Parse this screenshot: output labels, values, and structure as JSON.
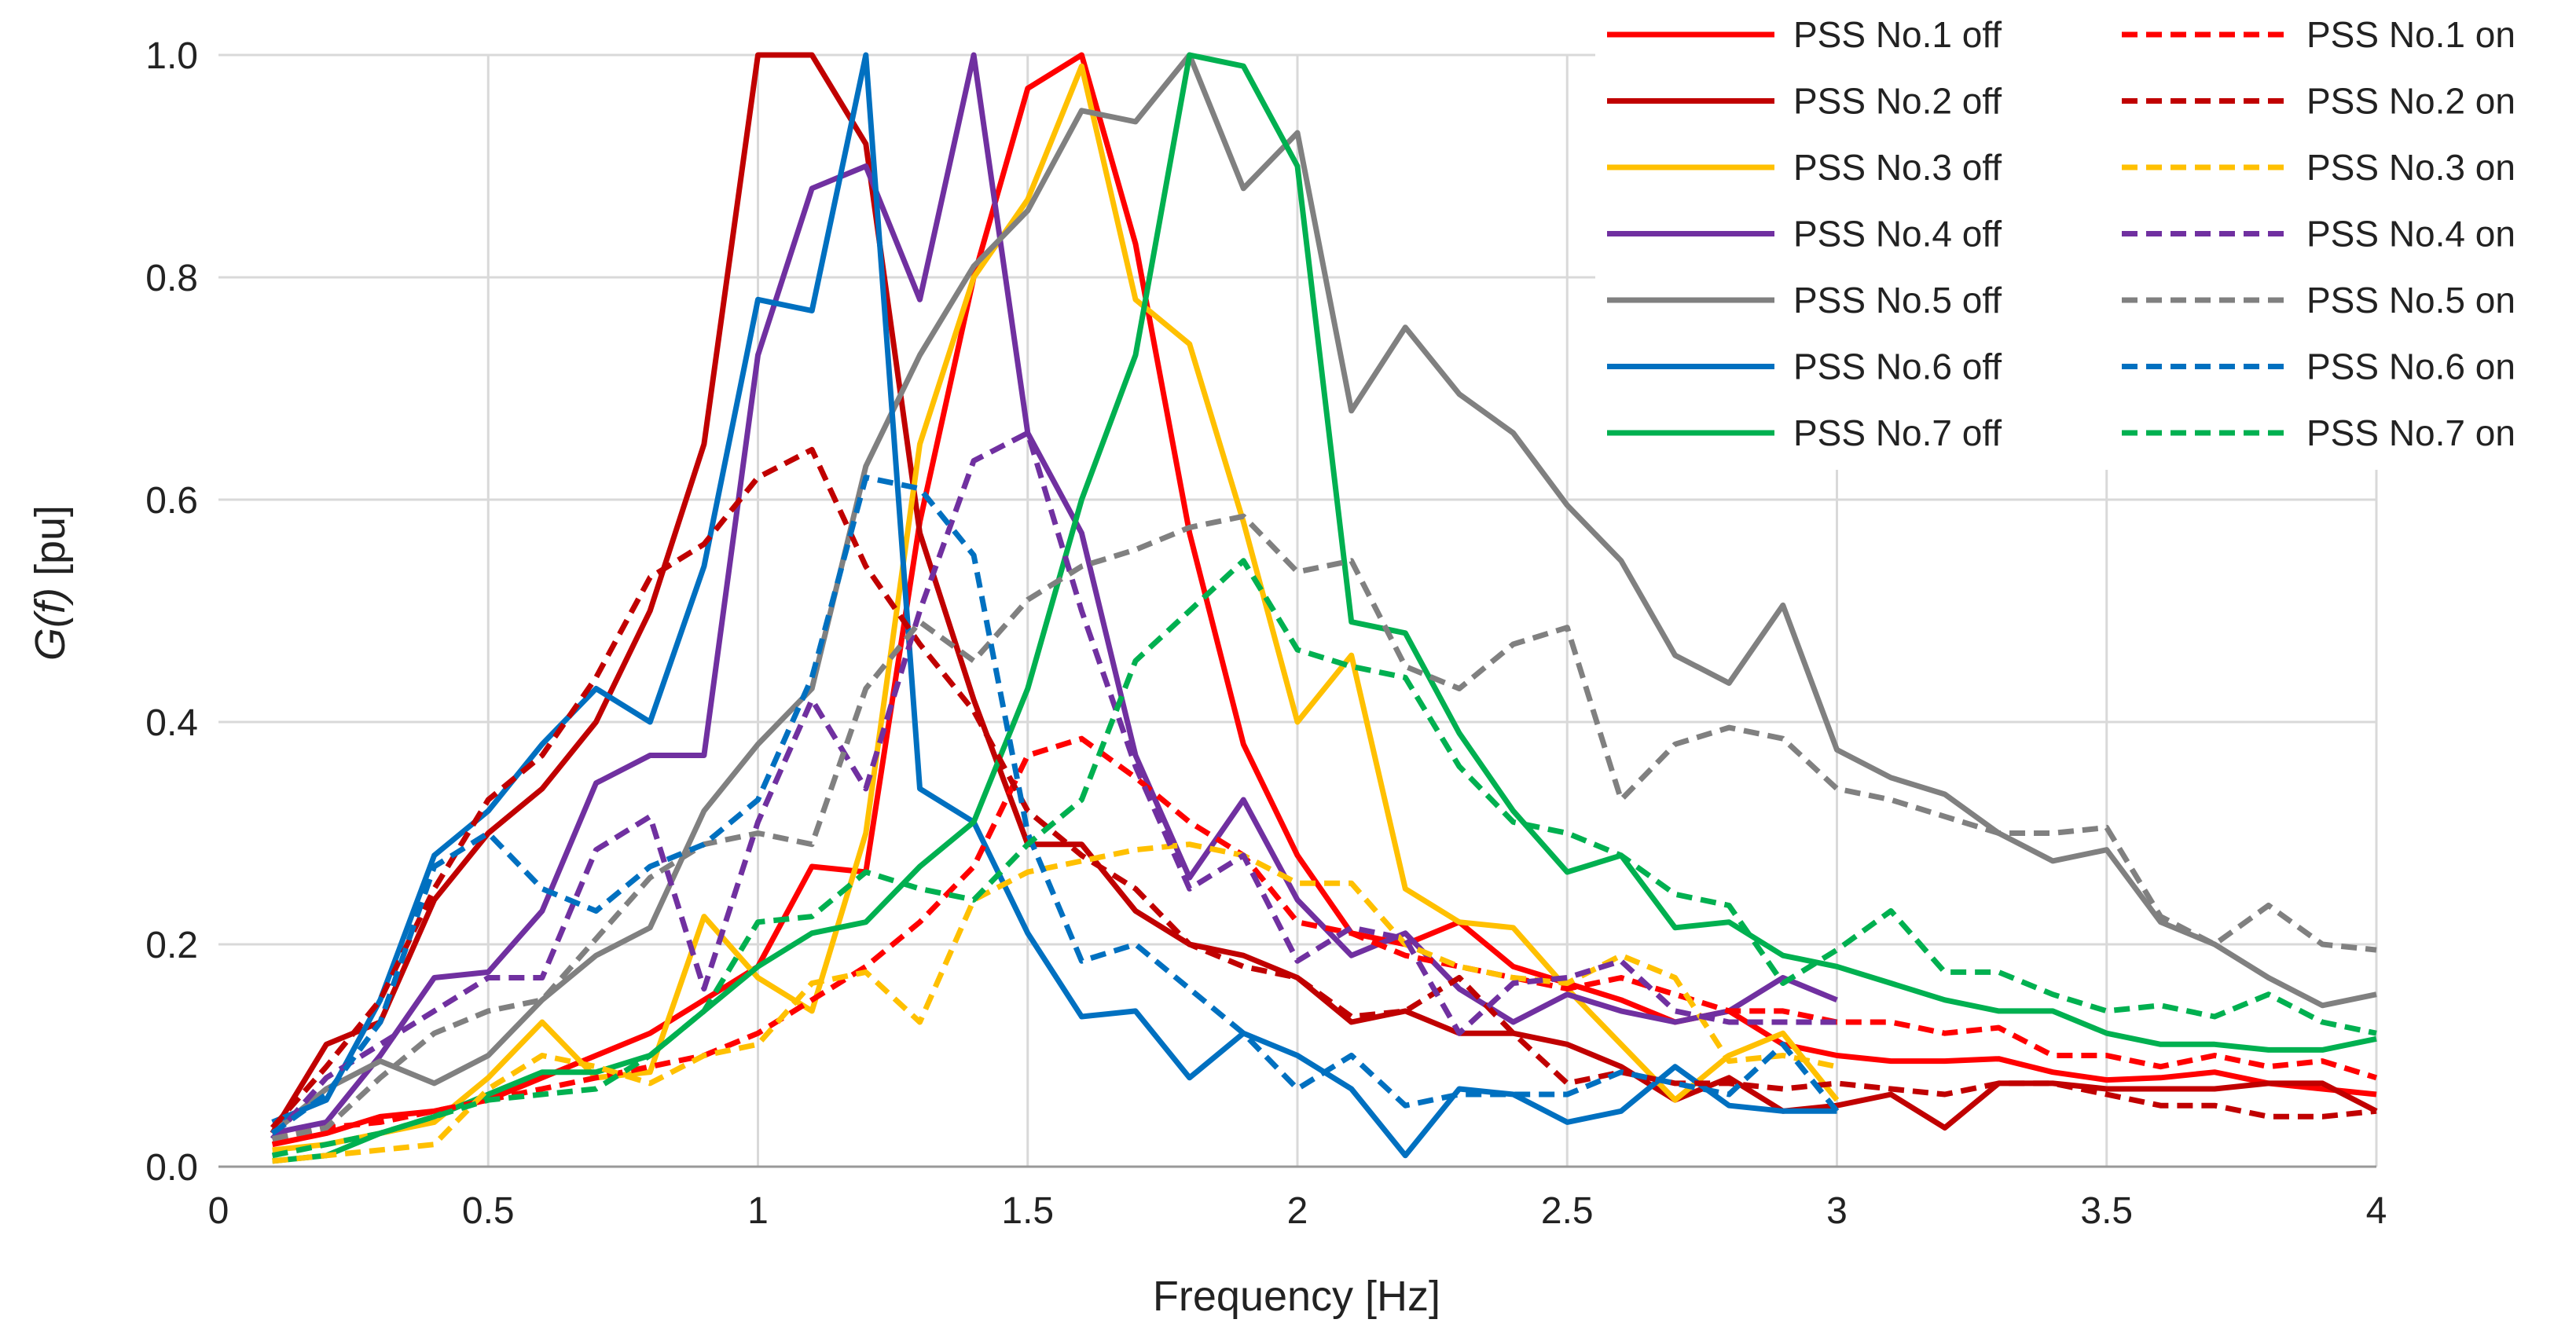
{
  "chart_data": {
    "type": "line",
    "title": "",
    "xlabel": "Frequency [Hz]",
    "ylabel_italic": "G(f)",
    "ylabel_unit": " [pu]",
    "xlim": [
      0,
      4
    ],
    "ylim": [
      0,
      1
    ],
    "xticks": [
      0,
      0.5,
      1,
      1.5,
      2,
      2.5,
      3,
      3.5,
      4
    ],
    "xtick_labels": [
      "0",
      "0.5",
      "1",
      "1.5",
      "2",
      "2.5",
      "3",
      "3.5",
      "4"
    ],
    "yticks": [
      0,
      0.2,
      0.4,
      0.6,
      0.8,
      1
    ],
    "ytick_labels": [
      "0.0",
      "0.2",
      "0.4",
      "0.6",
      "0.8",
      "1.0"
    ],
    "grid": "both",
    "legend_placement": "top-right",
    "series": [
      {
        "name": "PSS No.1 off",
        "color": "#ff0000",
        "dash": "solid",
        "x": [
          0.1,
          0.2,
          0.3,
          0.4,
          0.5,
          0.6,
          0.7,
          0.8,
          0.9,
          1.0,
          1.1,
          1.2,
          1.3,
          1.4,
          1.5,
          1.6,
          1.7,
          1.8,
          1.9,
          2.0,
          2.1,
          2.2,
          2.3,
          2.4,
          2.5,
          2.6,
          2.7,
          2.8,
          2.9,
          3.0,
          3.1,
          3.2,
          3.3,
          3.4,
          3.5,
          3.6,
          3.7,
          3.8,
          3.9,
          4.0
        ],
        "y": [
          0.02,
          0.03,
          0.045,
          0.05,
          0.06,
          0.08,
          0.1,
          0.12,
          0.15,
          0.18,
          0.27,
          0.265,
          0.58,
          0.8,
          0.97,
          1.0,
          0.83,
          0.57,
          0.38,
          0.28,
          0.21,
          0.2,
          0.22,
          0.18,
          0.165,
          0.15,
          0.13,
          0.14,
          0.11,
          0.1,
          0.095,
          0.095,
          0.097,
          0.085,
          0.078,
          0.08,
          0.085,
          0.075,
          0.07,
          0.065
        ]
      },
      {
        "name": "PSS No.2 off",
        "color": "#c00000",
        "dash": "solid",
        "x": [
          0.1,
          0.2,
          0.3,
          0.4,
          0.5,
          0.6,
          0.7,
          0.8,
          0.9,
          1.0,
          1.1,
          1.2,
          1.3,
          1.4,
          1.5,
          1.6,
          1.7,
          1.8,
          1.9,
          2.0,
          2.1,
          2.2,
          2.3,
          2.4,
          2.5,
          2.6,
          2.7,
          2.8,
          2.9,
          3.0,
          3.1,
          3.2,
          3.3,
          3.4,
          3.5,
          3.6,
          3.7,
          3.8,
          3.9,
          4.0
        ],
        "y": [
          0.03,
          0.11,
          0.13,
          0.24,
          0.3,
          0.34,
          0.4,
          0.5,
          0.65,
          1.0,
          1.0,
          0.92,
          0.57,
          0.42,
          0.29,
          0.29,
          0.23,
          0.2,
          0.19,
          0.17,
          0.13,
          0.14,
          0.12,
          0.12,
          0.11,
          0.09,
          0.06,
          0.08,
          0.05,
          0.055,
          0.065,
          0.035,
          0.075,
          0.075,
          0.07,
          0.07,
          0.07,
          0.075,
          0.075,
          0.05
        ]
      },
      {
        "name": "PSS No.3 off",
        "color": "#ffc000",
        "dash": "solid",
        "x": [
          0.1,
          0.2,
          0.3,
          0.4,
          0.5,
          0.6,
          0.7,
          0.8,
          0.9,
          1.0,
          1.1,
          1.2,
          1.3,
          1.4,
          1.5,
          1.6,
          1.7,
          1.8,
          1.9,
          2.0,
          2.1,
          2.2,
          2.3,
          2.4,
          2.5,
          2.6,
          2.7,
          2.8,
          2.9,
          3.0
        ],
        "y": [
          0.015,
          0.02,
          0.03,
          0.04,
          0.08,
          0.13,
          0.08,
          0.085,
          0.225,
          0.17,
          0.14,
          0.3,
          0.65,
          0.8,
          0.87,
          0.99,
          0.78,
          0.74,
          0.58,
          0.4,
          0.46,
          0.25,
          0.22,
          0.215,
          0.16,
          0.11,
          0.06,
          0.1,
          0.12,
          0.06
        ]
      },
      {
        "name": "PSS No.4 off",
        "color": "#7030a0",
        "dash": "solid",
        "x": [
          0.1,
          0.2,
          0.3,
          0.4,
          0.5,
          0.6,
          0.7,
          0.8,
          0.9,
          1.0,
          1.1,
          1.2,
          1.3,
          1.4,
          1.5,
          1.6,
          1.7,
          1.8,
          1.9,
          2.0,
          2.1,
          2.2,
          2.3,
          2.4,
          2.5,
          2.6,
          2.7,
          2.8,
          2.9,
          3.0
        ],
        "y": [
          0.03,
          0.04,
          0.1,
          0.17,
          0.175,
          0.23,
          0.345,
          0.37,
          0.37,
          0.73,
          0.88,
          0.9,
          0.78,
          1.0,
          0.66,
          0.57,
          0.37,
          0.26,
          0.33,
          0.24,
          0.19,
          0.21,
          0.16,
          0.13,
          0.155,
          0.14,
          0.13,
          0.14,
          0.17,
          0.15
        ]
      },
      {
        "name": "PSS No.5 off",
        "color": "#808080",
        "dash": "solid",
        "x": [
          0.1,
          0.2,
          0.3,
          0.4,
          0.5,
          0.6,
          0.7,
          0.8,
          0.9,
          1.0,
          1.1,
          1.2,
          1.3,
          1.4,
          1.5,
          1.6,
          1.7,
          1.8,
          1.9,
          2.0,
          2.1,
          2.2,
          2.3,
          2.4,
          2.5,
          2.6,
          2.7,
          2.8,
          2.9,
          3.0,
          3.1,
          3.2,
          3.3,
          3.4,
          3.5,
          3.6,
          3.7,
          3.8,
          3.9,
          4.0
        ],
        "y": [
          0.03,
          0.07,
          0.095,
          0.075,
          0.1,
          0.15,
          0.19,
          0.215,
          0.32,
          0.38,
          0.43,
          0.63,
          0.73,
          0.81,
          0.86,
          0.95,
          0.94,
          1.0,
          0.88,
          0.93,
          0.68,
          0.755,
          0.695,
          0.66,
          0.595,
          0.545,
          0.46,
          0.435,
          0.505,
          0.375,
          0.35,
          0.335,
          0.3,
          0.275,
          0.285,
          0.22,
          0.2,
          0.17,
          0.145,
          0.155
        ]
      },
      {
        "name": "PSS No.6 off",
        "color": "#0070c0",
        "dash": "solid",
        "x": [
          0.1,
          0.2,
          0.3,
          0.4,
          0.5,
          0.6,
          0.7,
          0.8,
          0.9,
          1.0,
          1.1,
          1.2,
          1.3,
          1.4,
          1.5,
          1.6,
          1.7,
          1.8,
          1.9,
          2.0,
          2.1,
          2.2,
          2.3,
          2.4,
          2.5,
          2.6,
          2.7,
          2.8,
          2.9,
          3.0
        ],
        "y": [
          0.04,
          0.06,
          0.15,
          0.28,
          0.32,
          0.38,
          0.43,
          0.4,
          0.54,
          0.78,
          0.77,
          1.0,
          0.34,
          0.31,
          0.21,
          0.135,
          0.14,
          0.08,
          0.12,
          0.1,
          0.07,
          0.01,
          0.07,
          0.065,
          0.04,
          0.05,
          0.09,
          0.055,
          0.05,
          0.05
        ]
      },
      {
        "name": "PSS No.7 off",
        "color": "#00b050",
        "dash": "solid",
        "x": [
          0.1,
          0.2,
          0.3,
          0.4,
          0.5,
          0.6,
          0.7,
          0.8,
          0.9,
          1.0,
          1.1,
          1.2,
          1.3,
          1.4,
          1.5,
          1.6,
          1.7,
          1.8,
          1.9,
          2.0,
          2.1,
          2.2,
          2.3,
          2.4,
          2.5,
          2.6,
          2.7,
          2.8,
          2.9,
          3.0,
          3.1,
          3.2,
          3.3,
          3.4,
          3.5,
          3.6,
          3.7,
          3.8,
          3.9,
          4.0
        ],
        "y": [
          0.005,
          0.01,
          0.03,
          0.045,
          0.065,
          0.085,
          0.085,
          0.1,
          0.14,
          0.18,
          0.21,
          0.22,
          0.27,
          0.31,
          0.43,
          0.6,
          0.73,
          1.0,
          0.99,
          0.9,
          0.49,
          0.48,
          0.39,
          0.32,
          0.265,
          0.28,
          0.215,
          0.22,
          0.19,
          0.18,
          0.165,
          0.15,
          0.14,
          0.14,
          0.12,
          0.11,
          0.11,
          0.105,
          0.105,
          0.115
        ]
      },
      {
        "name": "PSS No.1 on",
        "color": "#ff0000",
        "dash": "dashed",
        "x": [
          0.1,
          0.2,
          0.3,
          0.4,
          0.5,
          0.6,
          0.7,
          0.8,
          0.9,
          1.0,
          1.1,
          1.2,
          1.3,
          1.4,
          1.5,
          1.6,
          1.7,
          1.8,
          1.9,
          2.0,
          2.1,
          2.2,
          2.3,
          2.4,
          2.5,
          2.6,
          2.7,
          2.8,
          2.9,
          3.0,
          3.1,
          3.2,
          3.3,
          3.4,
          3.5,
          3.6,
          3.7,
          3.8,
          3.9,
          4.0
        ],
        "y": [
          0.025,
          0.035,
          0.04,
          0.05,
          0.06,
          0.07,
          0.08,
          0.09,
          0.1,
          0.12,
          0.15,
          0.18,
          0.22,
          0.27,
          0.37,
          0.385,
          0.35,
          0.31,
          0.28,
          0.22,
          0.21,
          0.19,
          0.18,
          0.17,
          0.16,
          0.17,
          0.155,
          0.14,
          0.14,
          0.13,
          0.13,
          0.12,
          0.125,
          0.1,
          0.1,
          0.09,
          0.1,
          0.09,
          0.095,
          0.08
        ]
      },
      {
        "name": "PSS No.2 on",
        "color": "#c00000",
        "dash": "dashed",
        "x": [
          0.1,
          0.2,
          0.3,
          0.4,
          0.5,
          0.6,
          0.7,
          0.8,
          0.9,
          1.0,
          1.1,
          1.2,
          1.3,
          1.4,
          1.5,
          1.6,
          1.7,
          1.8,
          1.9,
          2.0,
          2.1,
          2.2,
          2.3,
          2.4,
          2.5,
          2.6,
          2.7,
          2.8,
          2.9,
          3.0,
          3.1,
          3.2,
          3.3,
          3.4,
          3.5,
          3.6,
          3.7,
          3.8,
          3.9,
          4.0
        ],
        "y": [
          0.035,
          0.09,
          0.15,
          0.25,
          0.33,
          0.37,
          0.44,
          0.53,
          0.56,
          0.62,
          0.645,
          0.54,
          0.47,
          0.41,
          0.32,
          0.28,
          0.25,
          0.2,
          0.18,
          0.17,
          0.135,
          0.14,
          0.17,
          0.12,
          0.075,
          0.085,
          0.075,
          0.075,
          0.07,
          0.075,
          0.07,
          0.065,
          0.075,
          0.075,
          0.065,
          0.055,
          0.055,
          0.045,
          0.045,
          0.05
        ]
      },
      {
        "name": "PSS No.3 on",
        "color": "#ffc000",
        "dash": "dashed",
        "x": [
          0.1,
          0.2,
          0.3,
          0.4,
          0.5,
          0.6,
          0.7,
          0.8,
          0.9,
          1.0,
          1.1,
          1.2,
          1.3,
          1.4,
          1.5,
          1.6,
          1.7,
          1.8,
          1.9,
          2.0,
          2.1,
          2.2,
          2.3,
          2.4,
          2.5,
          2.6,
          2.7,
          2.8,
          2.9,
          3.0
        ],
        "y": [
          0.005,
          0.01,
          0.015,
          0.02,
          0.07,
          0.1,
          0.09,
          0.075,
          0.1,
          0.11,
          0.165,
          0.175,
          0.13,
          0.24,
          0.265,
          0.275,
          0.285,
          0.29,
          0.28,
          0.255,
          0.255,
          0.2,
          0.18,
          0.17,
          0.165,
          0.19,
          0.17,
          0.095,
          0.1,
          0.09
        ]
      },
      {
        "name": "PSS No.4 on",
        "color": "#7030a0",
        "dash": "dashed",
        "x": [
          0.1,
          0.2,
          0.3,
          0.4,
          0.5,
          0.6,
          0.7,
          0.8,
          0.9,
          1.0,
          1.1,
          1.2,
          1.3,
          1.4,
          1.5,
          1.6,
          1.7,
          1.8,
          1.9,
          2.0,
          2.1,
          2.2,
          2.3,
          2.4,
          2.5,
          2.6,
          2.7,
          2.8,
          2.9,
          3.0
        ],
        "y": [
          0.025,
          0.08,
          0.11,
          0.14,
          0.17,
          0.17,
          0.285,
          0.315,
          0.16,
          0.31,
          0.42,
          0.34,
          0.5,
          0.635,
          0.66,
          0.5,
          0.36,
          0.25,
          0.28,
          0.185,
          0.215,
          0.205,
          0.12,
          0.165,
          0.17,
          0.185,
          0.14,
          0.13,
          0.13,
          0.13
        ]
      },
      {
        "name": "PSS No.5 on",
        "color": "#808080",
        "dash": "dashed",
        "x": [
          0.1,
          0.2,
          0.3,
          0.4,
          0.5,
          0.6,
          0.7,
          0.8,
          0.9,
          1.0,
          1.1,
          1.2,
          1.3,
          1.4,
          1.5,
          1.6,
          1.7,
          1.8,
          1.9,
          2.0,
          2.1,
          2.2,
          2.3,
          2.4,
          2.5,
          2.6,
          2.7,
          2.8,
          2.9,
          3.0,
          3.1,
          3.2,
          3.3,
          3.4,
          3.5,
          3.6,
          3.7,
          3.8,
          3.9,
          4.0
        ],
        "y": [
          0.025,
          0.035,
          0.08,
          0.12,
          0.14,
          0.15,
          0.205,
          0.26,
          0.29,
          0.3,
          0.29,
          0.43,
          0.49,
          0.455,
          0.51,
          0.54,
          0.555,
          0.575,
          0.585,
          0.535,
          0.545,
          0.45,
          0.43,
          0.47,
          0.485,
          0.33,
          0.38,
          0.395,
          0.385,
          0.34,
          0.33,
          0.315,
          0.3,
          0.3,
          0.305,
          0.225,
          0.2,
          0.235,
          0.2,
          0.195
        ]
      },
      {
        "name": "PSS No.6 on",
        "color": "#0070c0",
        "dash": "dashed",
        "x": [
          0.1,
          0.2,
          0.3,
          0.4,
          0.5,
          0.6,
          0.7,
          0.8,
          0.9,
          1.0,
          1.1,
          1.2,
          1.3,
          1.4,
          1.5,
          1.6,
          1.7,
          1.8,
          1.9,
          2.0,
          2.1,
          2.2,
          2.3,
          2.4,
          2.5,
          2.6,
          2.7,
          2.8,
          2.9,
          3.0
        ],
        "y": [
          0.03,
          0.065,
          0.13,
          0.27,
          0.3,
          0.25,
          0.23,
          0.27,
          0.29,
          0.33,
          0.44,
          0.62,
          0.61,
          0.55,
          0.3,
          0.185,
          0.2,
          0.16,
          0.12,
          0.07,
          0.1,
          0.055,
          0.065,
          0.065,
          0.065,
          0.085,
          0.075,
          0.065,
          0.11,
          0.05
        ]
      },
      {
        "name": "PSS No.7 on",
        "color": "#00b050",
        "dash": "dashed",
        "x": [
          0.1,
          0.2,
          0.3,
          0.4,
          0.5,
          0.6,
          0.7,
          0.8,
          0.9,
          1.0,
          1.1,
          1.2,
          1.3,
          1.4,
          1.5,
          1.6,
          1.7,
          1.8,
          1.9,
          2.0,
          2.1,
          2.2,
          2.3,
          2.4,
          2.5,
          2.6,
          2.7,
          2.8,
          2.9,
          3.0,
          3.1,
          3.2,
          3.3,
          3.4,
          3.5,
          3.6,
          3.7,
          3.8,
          3.9,
          4.0
        ],
        "y": [
          0.01,
          0.02,
          0.03,
          0.045,
          0.06,
          0.065,
          0.07,
          0.1,
          0.14,
          0.22,
          0.225,
          0.265,
          0.25,
          0.24,
          0.29,
          0.33,
          0.455,
          0.5,
          0.545,
          0.465,
          0.45,
          0.44,
          0.36,
          0.31,
          0.3,
          0.28,
          0.245,
          0.235,
          0.165,
          0.195,
          0.23,
          0.175,
          0.175,
          0.155,
          0.14,
          0.145,
          0.135,
          0.155,
          0.13,
          0.12
        ]
      }
    ]
  }
}
